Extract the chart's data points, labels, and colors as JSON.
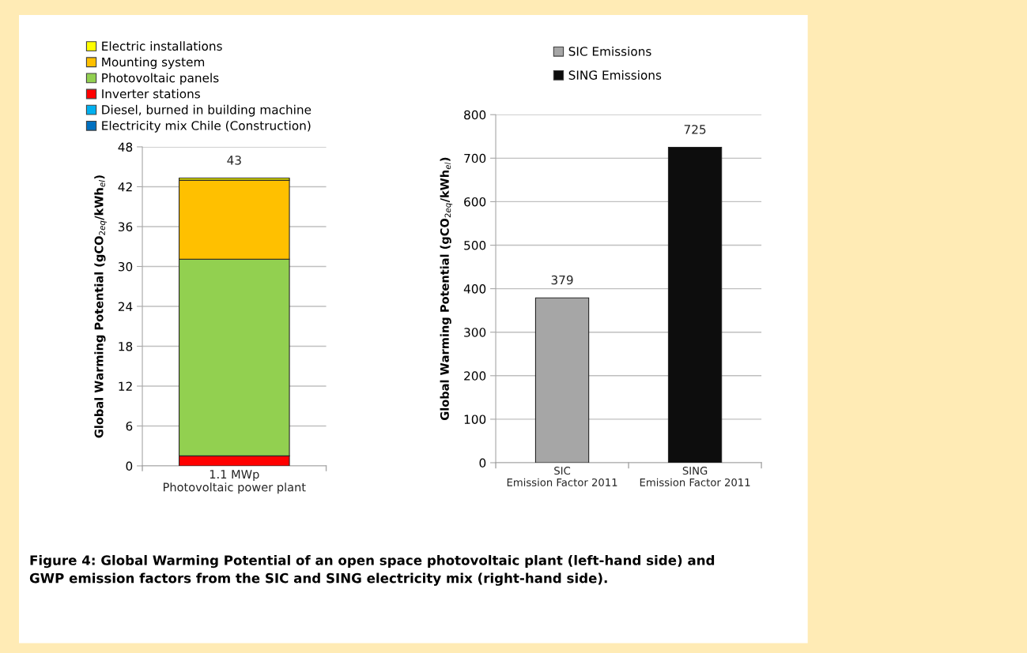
{
  "chart_data": [
    {
      "type": "bar",
      "stacked": true,
      "categories": [
        "1.1 MWp\nPhotovoltaic power plant"
      ],
      "ylabel": "Global Warming Potential (gCO$_{2eq}$/kWh$_{el}$)",
      "ylim": [
        0,
        48
      ],
      "yticks": [
        0,
        6,
        12,
        18,
        24,
        30,
        36,
        42,
        48
      ],
      "grid": "y",
      "legend": "top left",
      "totals": [
        "43"
      ],
      "series": [
        {
          "name": "Electricity mix Chile (Construction)",
          "color": "#0070c0",
          "values": [
            null
          ]
        },
        {
          "name": "Diesel, burned in building machine",
          "color": "#00b0f0",
          "values": [
            null
          ]
        },
        {
          "name": "Inverter stations",
          "color": "#ff0000",
          "values": [
            1.5
          ]
        },
        {
          "name": "Photovoltaic panels",
          "color": "#92d050",
          "values": [
            29.6
          ]
        },
        {
          "name": "Mounting system",
          "color": "#ffc000",
          "values": [
            11.9
          ]
        },
        {
          "name": "Electric installations",
          "color": "#ffff00",
          "values": [
            0.3
          ]
        }
      ],
      "annotations": [
        "Figure 4: Global Warming Potential of an open space photovoltaic plant (left-hand side) and\nGWP emission factors from the SIC and SING electricity mix (right-hand side)."
      ]
    },
    {
      "type": "bar",
      "categories": [
        "SIC\nEmission Factor 2011",
        "SING\nEmission Factor 2011"
      ],
      "ylabel": "Global Warming Potential (gCO$_{2eq}$/kWh$_{el}$)",
      "ylim": [
        0,
        800
      ],
      "yticks": [
        0,
        100,
        200,
        300,
        400,
        500,
        600,
        700,
        800
      ],
      "grid": "y",
      "legend": "top",
      "data_labels": true,
      "series": [
        {
          "name": "SIC Emissions",
          "color": "#a6a6a6",
          "values": [
            379,
            null
          ]
        },
        {
          "name": "SING Emissions",
          "color": "#0d0d0d",
          "values": [
            null,
            725
          ]
        }
      ]
    }
  ]
}
